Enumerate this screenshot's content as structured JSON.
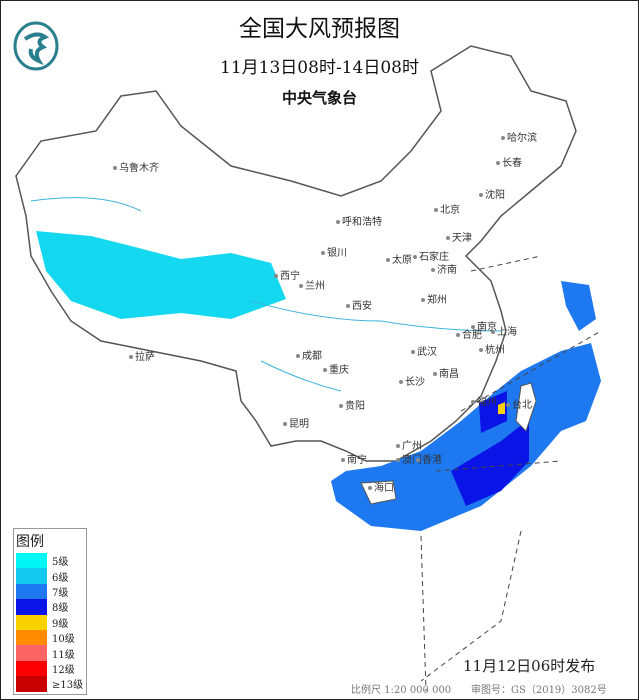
{
  "header": {
    "title": "全国大风预报图",
    "period": "11月13日08时-14日08时",
    "issuer": "中央气象台"
  },
  "cities": [
    "哈尔滨",
    "长春",
    "沈阳",
    "乌鲁木齐",
    "北京",
    "天津",
    "呼和浩特",
    "石家庄",
    "济南",
    "太原",
    "银川",
    "西宁",
    "兰州",
    "郑州",
    "西安",
    "合肥",
    "南京",
    "上海",
    "杭州",
    "拉萨",
    "成都",
    "武汉",
    "重庆",
    "长沙",
    "南昌",
    "福州",
    "台北",
    "贵阳",
    "昆明",
    "南宁",
    "广州",
    "香港",
    "澳门",
    "海口"
  ],
  "legend": {
    "title": "图例",
    "items": [
      {
        "label": "5级",
        "color": "#00f5f5"
      },
      {
        "label": "6级",
        "color": "#14c8f0"
      },
      {
        "label": "7级",
        "color": "#1e78f0"
      },
      {
        "label": "8级",
        "color": "#0a14e6"
      },
      {
        "label": "9级",
        "color": "#fad200"
      },
      {
        "label": "10级",
        "color": "#ff8c00"
      },
      {
        "label": "11级",
        "color": "#fa6464"
      },
      {
        "label": "12级",
        "color": "#fa0000"
      },
      {
        "label": "≥13级",
        "color": "#c80000"
      }
    ]
  },
  "footer": {
    "published": "11月12日06时发布",
    "scale": "比例尺 1:20 000 000",
    "approval": "审图号：GS（2019）3082号"
  }
}
